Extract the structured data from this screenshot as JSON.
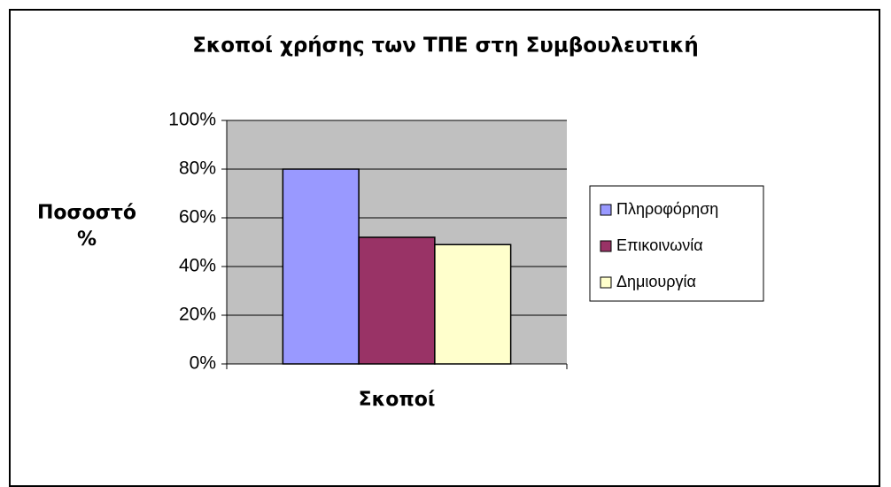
{
  "chart_data": {
    "type": "bar",
    "title": "Σκοποί χρήσης των ΤΠΕ στη Συμβουλευτική",
    "x_label": "Σκοποί",
    "y_label": "Ποσοστό %",
    "categories": [
      null
    ],
    "series": [
      {
        "name": "Πληροφόρηση",
        "color": "#9999ff",
        "values": [
          80
        ]
      },
      {
        "name": "Επικοινωνία",
        "color": "#993366",
        "values": [
          52
        ]
      },
      {
        "name": "Δημιουργία",
        "color": "#ffffcc",
        "values": [
          49
        ]
      }
    ],
    "ylim": [
      0,
      100
    ],
    "yticks": [
      {
        "value": 0,
        "label": "0%"
      },
      {
        "value": 20,
        "label": "20%"
      },
      {
        "value": 40,
        "label": "40%"
      },
      {
        "value": 60,
        "label": "60%"
      },
      {
        "value": 80,
        "label": "80%"
      },
      {
        "value": 100,
        "label": "100%"
      }
    ],
    "grid": true,
    "legend": "right",
    "plot_background": "#c0c0c0"
  }
}
